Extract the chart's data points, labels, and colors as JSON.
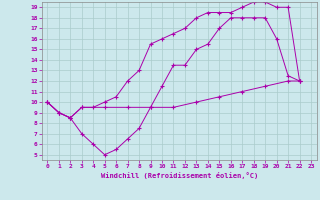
{
  "xlabel": "Windchill (Refroidissement éolien,°C)",
  "bg_color": "#cce8ec",
  "grid_color": "#aacccc",
  "line_color": "#aa00aa",
  "xlim": [
    -0.5,
    23.5
  ],
  "ylim": [
    4.5,
    19.5
  ],
  "xticks": [
    0,
    1,
    2,
    3,
    4,
    5,
    6,
    7,
    8,
    9,
    10,
    11,
    12,
    13,
    14,
    15,
    16,
    17,
    18,
    19,
    20,
    21,
    22,
    23
  ],
  "yticks": [
    5,
    6,
    7,
    8,
    9,
    10,
    11,
    12,
    13,
    14,
    15,
    16,
    17,
    18,
    19
  ],
  "line1_x": [
    0,
    1,
    2,
    3,
    4,
    5,
    6,
    7,
    8,
    9,
    10,
    11,
    12,
    13,
    14,
    15,
    16,
    17,
    18,
    19,
    20,
    21,
    22
  ],
  "line1_y": [
    10,
    9,
    8.5,
    9.5,
    9.5,
    10,
    10.5,
    12,
    13,
    15.5,
    16,
    16.5,
    17,
    18,
    18.5,
    18.5,
    18.5,
    19,
    19.5,
    19.5,
    19,
    19,
    12
  ],
  "line2_x": [
    0,
    1,
    2,
    3,
    4,
    5,
    6,
    7,
    8,
    9,
    10,
    11,
    12,
    13,
    14,
    15,
    16,
    17,
    18,
    19,
    20,
    21,
    22
  ],
  "line2_y": [
    10,
    9,
    8.5,
    7,
    6,
    5,
    5.5,
    6.5,
    7.5,
    9.5,
    11.5,
    13.5,
    13.5,
    15,
    15.5,
    17,
    18,
    18,
    18,
    18,
    16,
    12.5,
    12
  ],
  "line3_x": [
    0,
    1,
    2,
    3,
    5,
    7,
    9,
    11,
    13,
    15,
    17,
    19,
    21,
    22
  ],
  "line3_y": [
    10,
    9,
    8.5,
    9.5,
    9.5,
    9.5,
    9.5,
    9.5,
    10,
    10.5,
    11,
    11.5,
    12,
    12
  ]
}
